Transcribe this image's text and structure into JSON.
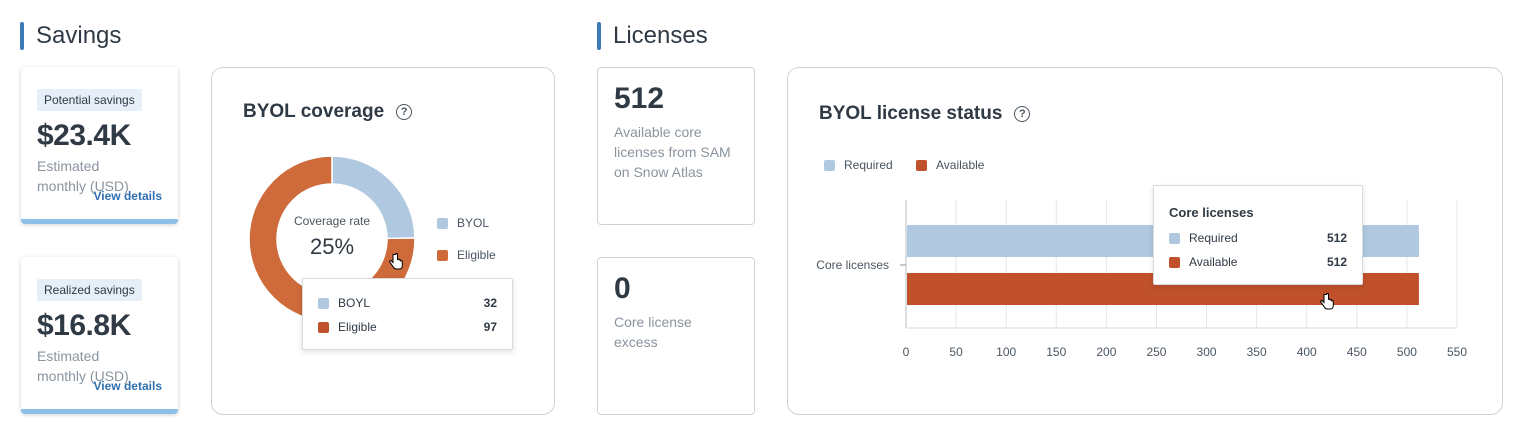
{
  "savings": {
    "title": "Savings",
    "potential": {
      "badge": "Potential savings",
      "value": "$23.4K",
      "desc": "Estimated monthly (USD)",
      "link": "View details"
    },
    "realized": {
      "badge": "Realized savings",
      "value": "$16.8K",
      "desc": "Estimated monthly (USD)",
      "link": "View details"
    }
  },
  "byol_coverage": {
    "title": "BYOL coverage",
    "help_icon": "?",
    "center_label": "Coverage rate",
    "center_value": "25%",
    "legend": [
      {
        "label": "BYOL",
        "color": "#b0c9e0"
      },
      {
        "label": "Eligible",
        "color": "#cf6a3a"
      }
    ],
    "tooltip": [
      {
        "label": "BOYL",
        "value": "32",
        "color": "#b0c9e0"
      },
      {
        "label": "Eligible",
        "value": "97",
        "color": "#c0512b"
      }
    ]
  },
  "licenses": {
    "title": "Licenses",
    "available": {
      "value": "512",
      "desc": "Available core licenses from SAM on Snow Atlas"
    },
    "excess": {
      "value": "0",
      "desc": "Core license excess"
    }
  },
  "chart_data": {
    "type": "bar",
    "orientation": "horizontal",
    "title": "BYOL license status",
    "categories": [
      "Core licenses"
    ],
    "series": [
      {
        "name": "Required",
        "values": [
          512
        ],
        "color": "#b0c9e0"
      },
      {
        "name": "Available",
        "values": [
          512
        ],
        "color": "#c0512b"
      }
    ],
    "xlim": [
      0,
      550
    ],
    "xticks": [
      "0",
      "50",
      "100",
      "150",
      "200",
      "250",
      "300",
      "350",
      "400",
      "450",
      "500",
      "550"
    ],
    "grid": true,
    "legend_position": "top-left",
    "tooltip": {
      "title": "Core licenses",
      "rows": [
        {
          "label": "Required",
          "value": "512",
          "color": "#b0c9e0"
        },
        {
          "label": "Available",
          "value": "512",
          "color": "#c0512b"
        }
      ]
    }
  }
}
